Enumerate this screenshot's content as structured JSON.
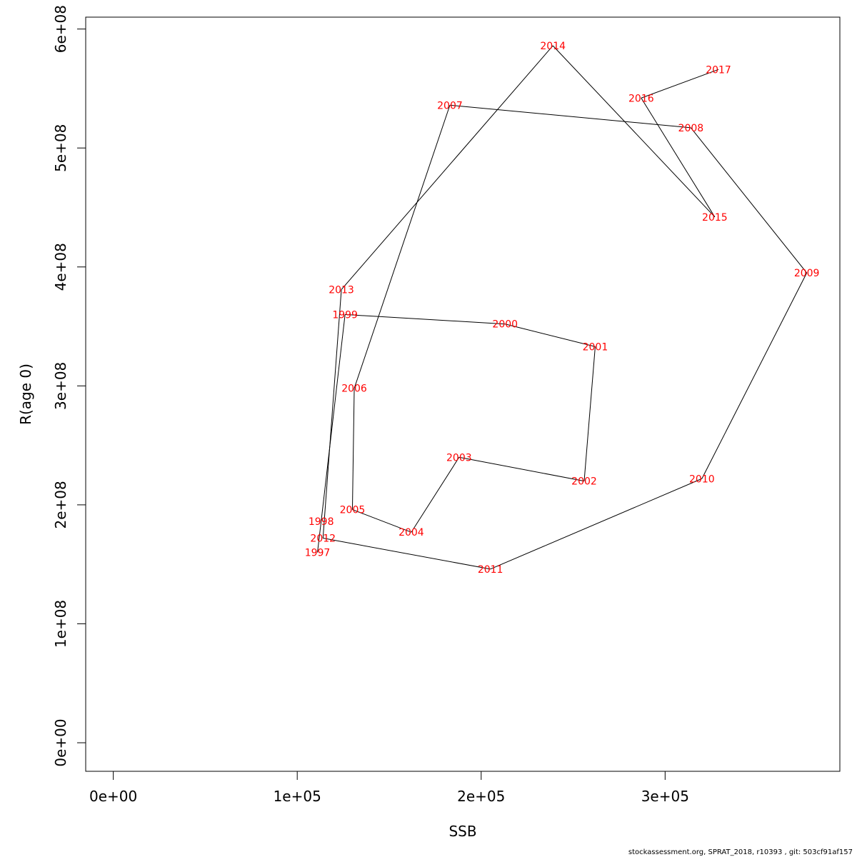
{
  "chart_data": {
    "type": "line",
    "xlabel": "SSB",
    "ylabel": "R(age 0)",
    "xlim": [
      -15000,
      395000
    ],
    "ylim": [
      -24000000,
      610000000
    ],
    "x_ticks": [
      0,
      100000,
      200000,
      300000
    ],
    "x_tick_labels": [
      "0e+00",
      "1e+05",
      "2e+05",
      "3e+05"
    ],
    "y_ticks": [
      0,
      100000000,
      200000000,
      300000000,
      400000000,
      500000000,
      600000000
    ],
    "y_tick_labels": [
      "0e+00",
      "1e+08",
      "2e+08",
      "3e+08",
      "4e+08",
      "5e+08",
      "6e+08"
    ],
    "grid": false,
    "line_color": "#000000",
    "label_color": "#ff0000",
    "points": [
      {
        "label": "1997",
        "x": 111000,
        "y": 160000000
      },
      {
        "label": "1998",
        "x": 113000,
        "y": 186000000
      },
      {
        "label": "1999",
        "x": 126000,
        "y": 360000000
      },
      {
        "label": "2000",
        "x": 213000,
        "y": 352000000
      },
      {
        "label": "2001",
        "x": 262000,
        "y": 333000000
      },
      {
        "label": "2002",
        "x": 256000,
        "y": 220000000
      },
      {
        "label": "2003",
        "x": 188000,
        "y": 240000000
      },
      {
        "label": "2004",
        "x": 162000,
        "y": 177000000
      },
      {
        "label": "2005",
        "x": 130000,
        "y": 196000000
      },
      {
        "label": "2006",
        "x": 131000,
        "y": 298000000
      },
      {
        "label": "2007",
        "x": 183000,
        "y": 536000000
      },
      {
        "label": "2008",
        "x": 314000,
        "y": 517000000
      },
      {
        "label": "2009",
        "x": 377000,
        "y": 395000000
      },
      {
        "label": "2010",
        "x": 320000,
        "y": 222000000
      },
      {
        "label": "2011",
        "x": 205000,
        "y": 146000000
      },
      {
        "label": "2012",
        "x": 114000,
        "y": 172000000
      },
      {
        "label": "2013",
        "x": 124000,
        "y": 381000000
      },
      {
        "label": "2014",
        "x": 239000,
        "y": 586000000
      },
      {
        "label": "2015",
        "x": 327000,
        "y": 442000000
      },
      {
        "label": "2016",
        "x": 287000,
        "y": 542000000
      },
      {
        "label": "2017",
        "x": 329000,
        "y": 566000000
      }
    ]
  },
  "footer": "stockassessment.org, SPRAT_2018, r10393 , git: 503cf91af157"
}
